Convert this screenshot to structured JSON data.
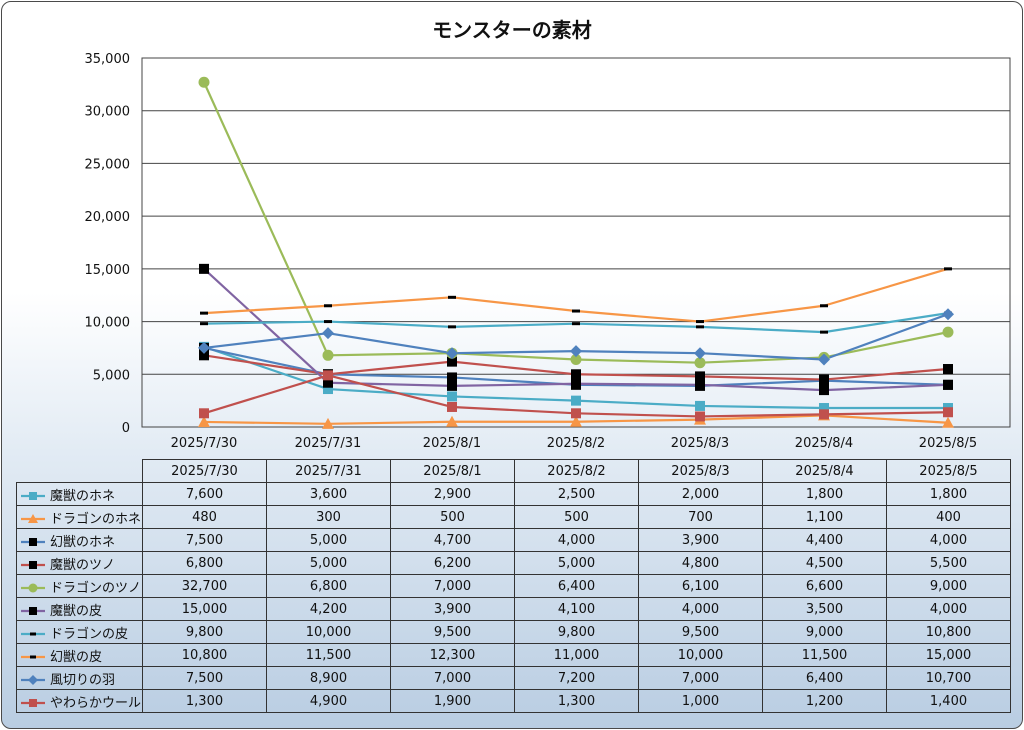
{
  "chart_data": {
    "type": "line",
    "title": "モンスターの素材",
    "xlabel": "",
    "ylabel": "",
    "ylim": [
      0,
      35000
    ],
    "yticks": [
      "0",
      "5,000",
      "10,000",
      "15,000",
      "20,000",
      "25,000",
      "30,000",
      "35,000"
    ],
    "grid": true,
    "legend": "data-table",
    "categories": [
      "2025/7/30",
      "2025/7/31",
      "2025/8/1",
      "2025/8/2",
      "2025/8/3",
      "2025/8/4",
      "2025/8/5"
    ],
    "series": [
      {
        "name": "魔獣のホネ",
        "color": "#4bacc6",
        "marker": "square",
        "values": [
          7600,
          3600,
          2900,
          2500,
          2000,
          1800,
          1800
        ],
        "labels": [
          "7,600",
          "3,600",
          "2,900",
          "2,500",
          "2,000",
          "1,800",
          "1,800"
        ]
      },
      {
        "name": "ドラゴンのホネ",
        "color": "#f79646",
        "marker": "triangle",
        "values": [
          480,
          300,
          500,
          500,
          700,
          1100,
          400
        ],
        "labels": [
          "480",
          "300",
          "500",
          "500",
          "700",
          "1,100",
          "400"
        ]
      },
      {
        "name": "幻獣のホネ",
        "color": "#4f81bd",
        "marker": "blacksquare",
        "values": [
          7500,
          5000,
          4700,
          4000,
          3900,
          4400,
          4000
        ],
        "labels": [
          "7,500",
          "5,000",
          "4,700",
          "4,000",
          "3,900",
          "4,400",
          "4,000"
        ]
      },
      {
        "name": "魔獣のツノ",
        "color": "#c0504d",
        "marker": "blacksquare",
        "values": [
          6800,
          5000,
          6200,
          5000,
          4800,
          4500,
          5500
        ],
        "labels": [
          "6,800",
          "5,000",
          "6,200",
          "5,000",
          "4,800",
          "4,500",
          "5,500"
        ]
      },
      {
        "name": "ドラゴンのツノ",
        "color": "#9bbb59",
        "marker": "circle",
        "values": [
          32700,
          6800,
          7000,
          6400,
          6100,
          6600,
          9000
        ],
        "labels": [
          "32,700",
          "6,800",
          "7,000",
          "6,400",
          "6,100",
          "6,600",
          "9,000"
        ]
      },
      {
        "name": "魔獣の皮",
        "color": "#8064a2",
        "marker": "blacksquare",
        "values": [
          15000,
          4200,
          3900,
          4100,
          4000,
          3500,
          4000
        ],
        "labels": [
          "15,000",
          "4,200",
          "3,900",
          "4,100",
          "4,000",
          "3,500",
          "4,000"
        ]
      },
      {
        "name": "ドラゴンの皮",
        "color": "#4bacc6",
        "marker": "dash",
        "values": [
          9800,
          10000,
          9500,
          9800,
          9500,
          9000,
          10800
        ],
        "labels": [
          "9,800",
          "10,000",
          "9,500",
          "9,800",
          "9,500",
          "9,000",
          "10,800"
        ]
      },
      {
        "name": "幻獣の皮",
        "color": "#f79646",
        "marker": "dash",
        "values": [
          10800,
          11500,
          12300,
          11000,
          10000,
          11500,
          15000
        ],
        "labels": [
          "10,800",
          "11,500",
          "12,300",
          "11,000",
          "10,000",
          "11,500",
          "15,000"
        ]
      },
      {
        "name": "風切りの羽",
        "color": "#4f81bd",
        "marker": "diamond",
        "values": [
          7500,
          8900,
          7000,
          7200,
          7000,
          6400,
          10700
        ],
        "labels": [
          "7,500",
          "8,900",
          "7,000",
          "7,200",
          "7,000",
          "6,400",
          "10,700"
        ]
      },
      {
        "name": "やわらかウール",
        "color": "#c0504d",
        "marker": "square",
        "values": [
          1300,
          4900,
          1900,
          1300,
          1000,
          1200,
          1400
        ],
        "labels": [
          "1,300",
          "4,900",
          "1,900",
          "1,300",
          "1,000",
          "1,200",
          "1,400"
        ]
      }
    ]
  }
}
